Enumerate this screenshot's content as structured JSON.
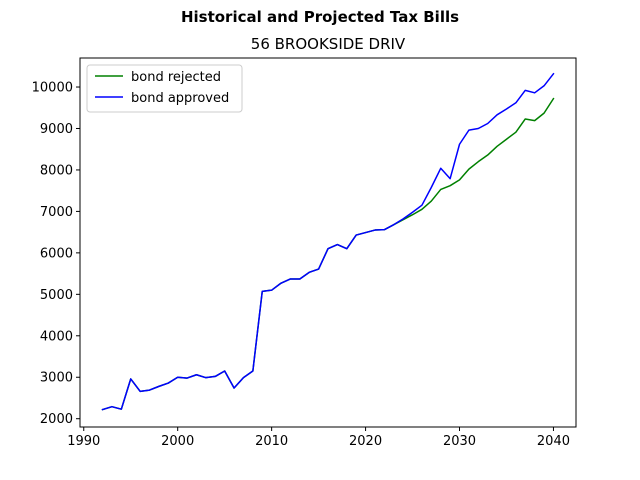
{
  "chart_data": {
    "type": "line",
    "suptitle": "Historical and Projected Tax Bills",
    "title": "56 BROOKSIDE DRIV",
    "xlabel": "",
    "ylabel": "",
    "xlim": [
      1989.6,
      2042.4
    ],
    "ylim": [
      1800,
      10700
    ],
    "xticks": [
      "1990",
      "2000",
      "2010",
      "2020",
      "2030",
      "2040"
    ],
    "yticks": [
      "2000",
      "3000",
      "4000",
      "5000",
      "6000",
      "7000",
      "8000",
      "9000",
      "10000"
    ],
    "grid": false,
    "legend_position": "top-left",
    "x": [
      1992,
      1993,
      1994,
      1995,
      1996,
      1997,
      1998,
      1999,
      2000,
      2001,
      2002,
      2003,
      2004,
      2005,
      2006,
      2007,
      2008,
      2009,
      2010,
      2011,
      2012,
      2013,
      2014,
      2015,
      2016,
      2017,
      2018,
      2019,
      2020,
      2021,
      2022,
      2023,
      2024,
      2025,
      2026,
      2027,
      2028,
      2029,
      2030,
      2031,
      2032,
      2033,
      2034,
      2035,
      2036,
      2037,
      2038,
      2039,
      2040
    ],
    "series": [
      {
        "name": "bond rejected",
        "color": "#008000",
        "values": [
          2220,
          2290,
          2230,
          2960,
          2660,
          2690,
          2780,
          2860,
          3000,
          2980,
          3060,
          2990,
          3020,
          3150,
          2740,
          2990,
          3150,
          5070,
          5100,
          5270,
          5370,
          5370,
          5530,
          5610,
          6100,
          6200,
          6100,
          6430,
          6490,
          6550,
          6560,
          6680,
          6800,
          6920,
          7050,
          7250,
          7530,
          7620,
          7760,
          8020,
          8200,
          8360,
          8570,
          8740,
          8910,
          9230,
          9190,
          9370,
          9720
        ]
      },
      {
        "name": "bond approved",
        "color": "#0000ff",
        "values": [
          2220,
          2290,
          2230,
          2960,
          2660,
          2690,
          2780,
          2860,
          3000,
          2980,
          3060,
          2990,
          3020,
          3150,
          2740,
          2990,
          3150,
          5070,
          5100,
          5270,
          5370,
          5370,
          5530,
          5610,
          6100,
          6200,
          6100,
          6430,
          6490,
          6550,
          6560,
          6680,
          6820,
          6980,
          7150,
          7580,
          8040,
          7790,
          8620,
          8960,
          9000,
          9120,
          9330,
          9470,
          9620,
          9920,
          9860,
          10030,
          10320
        ]
      }
    ]
  }
}
